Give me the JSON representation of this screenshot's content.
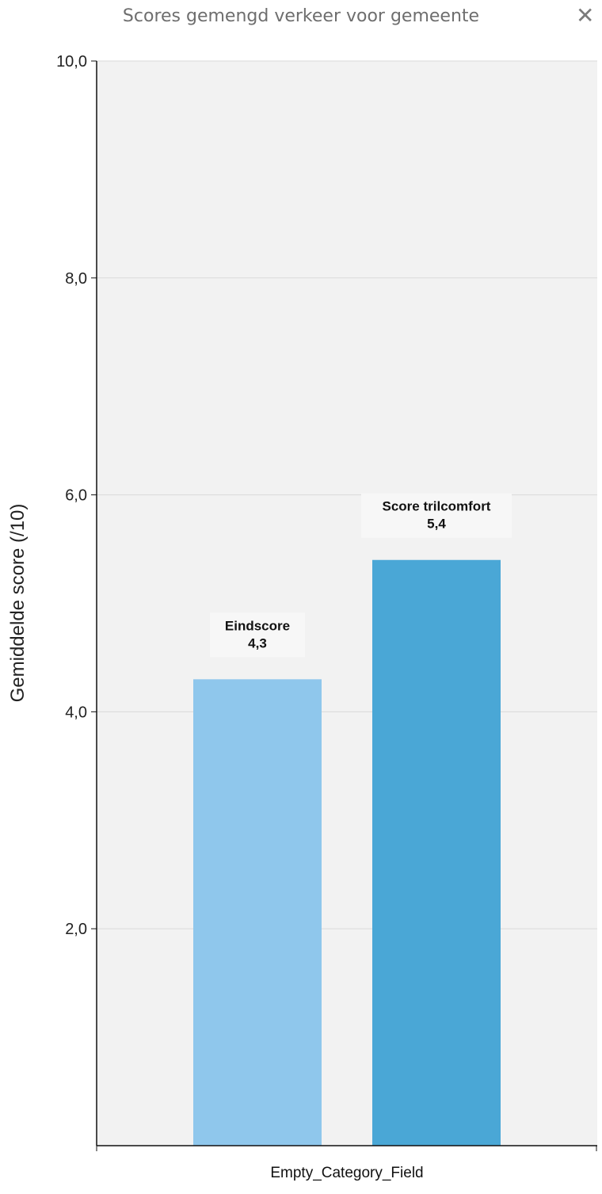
{
  "window": {
    "title": "Scores gemengd verkeer voor gemeente",
    "close_icon": "close-icon"
  },
  "chart_data": {
    "type": "bar",
    "ylabel": "Gemiddelde score (/10)",
    "xlabel": "Empty_Category_Field",
    "ylim": [
      0,
      10
    ],
    "yticks": [
      "2,0",
      "4,0",
      "6,0",
      "8,0",
      "10,0"
    ],
    "grid": true,
    "series": [
      {
        "name": "Eindscore",
        "value": 4.3,
        "label": "4,3",
        "color": "#8fc7ec"
      },
      {
        "name": "Score trilcomfort",
        "value": 5.4,
        "label": "5,4",
        "color": "#4aa7d6"
      }
    ]
  }
}
